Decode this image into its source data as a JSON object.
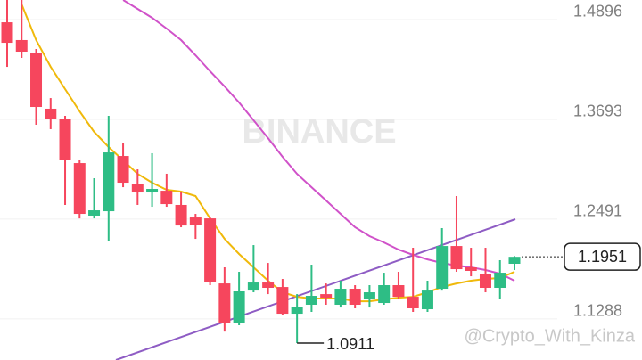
{
  "chart_data": {
    "type": "candlestick",
    "open": [
      1.4777,
      1.4563,
      1.4402,
      1.3736,
      1.3617,
      1.308,
      1.2447,
      1.25,
      1.3166,
      1.2833,
      1.2726,
      1.2747,
      1.2576,
      1.2425,
      1.2414,
      1.163,
      1.1158,
      1.1544,
      1.1641,
      1.1587,
      1.1265,
      1.1373,
      1.1501,
      1.1373,
      1.1566,
      1.1437,
      1.1394,
      1.1609,
      1.1469,
      1.1319,
      1.1566,
      1.2081,
      1.1824,
      1.1748,
      1.1577,
      1.1867
    ],
    "high": [
      1.5046,
      1.5046,
      1.4455,
      1.3864,
      1.365,
      1.3113,
      1.2898,
      1.365,
      1.3327,
      1.3005,
      1.3199,
      1.2952,
      1.2737,
      1.2468,
      1.2436,
      1.1824,
      1.177,
      1.2092,
      1.1877,
      1.1684,
      1.1501,
      1.1856,
      1.163,
      1.1663,
      1.1609,
      1.1609,
      1.1759,
      1.177,
      1.206,
      1.1663,
      1.2296,
      1.2683,
      1.206,
      1.206,
      1.191,
      1.196
    ],
    "low": [
      1.424,
      1.4348,
      1.3542,
      1.3489,
      1.2576,
      1.2414,
      1.2414,
      1.2146,
      1.279,
      1.2576,
      1.2554,
      1.2554,
      1.2307,
      1.2167,
      1.1609,
      1.105,
      1.1126,
      1.1523,
      1.1501,
      1.1244,
      1.0911,
      1.1287,
      1.1373,
      1.134,
      1.133,
      1.134,
      1.1373,
      1.1448,
      1.1287,
      1.1287,
      1.1544,
      1.177,
      1.1716,
      1.1523,
      1.1448,
      1.1792
    ],
    "close": [
      1.453,
      1.4423,
      1.3757,
      1.3607,
      1.3113,
      1.2468,
      1.2511,
      1.3209,
      1.2844,
      1.2726,
      1.2769,
      1.2586,
      1.2328,
      1.2339,
      1.1652,
      1.1158,
      1.1534,
      1.1641,
      1.1577,
      1.1265,
      1.1351,
      1.148,
      1.1458,
      1.1566,
      1.1373,
      1.1523,
      1.1609,
      1.1469,
      1.133,
      1.1544,
      1.2081,
      1.1802,
      1.1781,
      1.1577,
      1.1759,
      1.1951
    ],
    "up_color": "#2ebd85",
    "down_color": "#f6465d",
    "series": [
      {
        "color": "#f0b90b",
        "values": [
          null,
          1.4992,
          1.4563,
          1.424,
          1.3972,
          1.3703,
          1.3456,
          1.3274,
          1.3113,
          1.2951,
          1.2844,
          1.2758,
          1.2737,
          1.2683,
          1.2414,
          1.2167,
          1.1985,
          1.1824,
          1.1663,
          1.1523,
          1.1469,
          1.1448,
          1.1448,
          1.1448,
          1.1415,
          1.1415,
          1.1437,
          1.1458,
          1.1469,
          1.1523,
          1.1587,
          1.163,
          1.1663,
          1.1684,
          1.1695,
          1.177
        ]
      },
      {
        "color": "#d052c9",
        "values": [
          null,
          null,
          null,
          null,
          null,
          null,
          null,
          null,
          1.5046,
          1.4939,
          1.4831,
          1.4702,
          1.4563,
          1.438,
          1.4187,
          1.4004,
          1.3811,
          1.3596,
          1.3381,
          1.3156,
          1.2951,
          1.279,
          1.2629,
          1.2468,
          1.2307,
          1.22,
          1.2124,
          1.2038,
          1.1974,
          1.192,
          1.1877,
          1.1845,
          1.1824,
          1.1792,
          1.1748,
          1.1663
        ]
      }
    ],
    "ylim": [
      1.0707,
      1.5046
    ],
    "yticks": [
      1.4896,
      1.3693,
      1.2491,
      1.1288
    ],
    "grid": true,
    "watermark": "BINANCE",
    "credit": "@Crypto_With_Kinza"
  }
}
